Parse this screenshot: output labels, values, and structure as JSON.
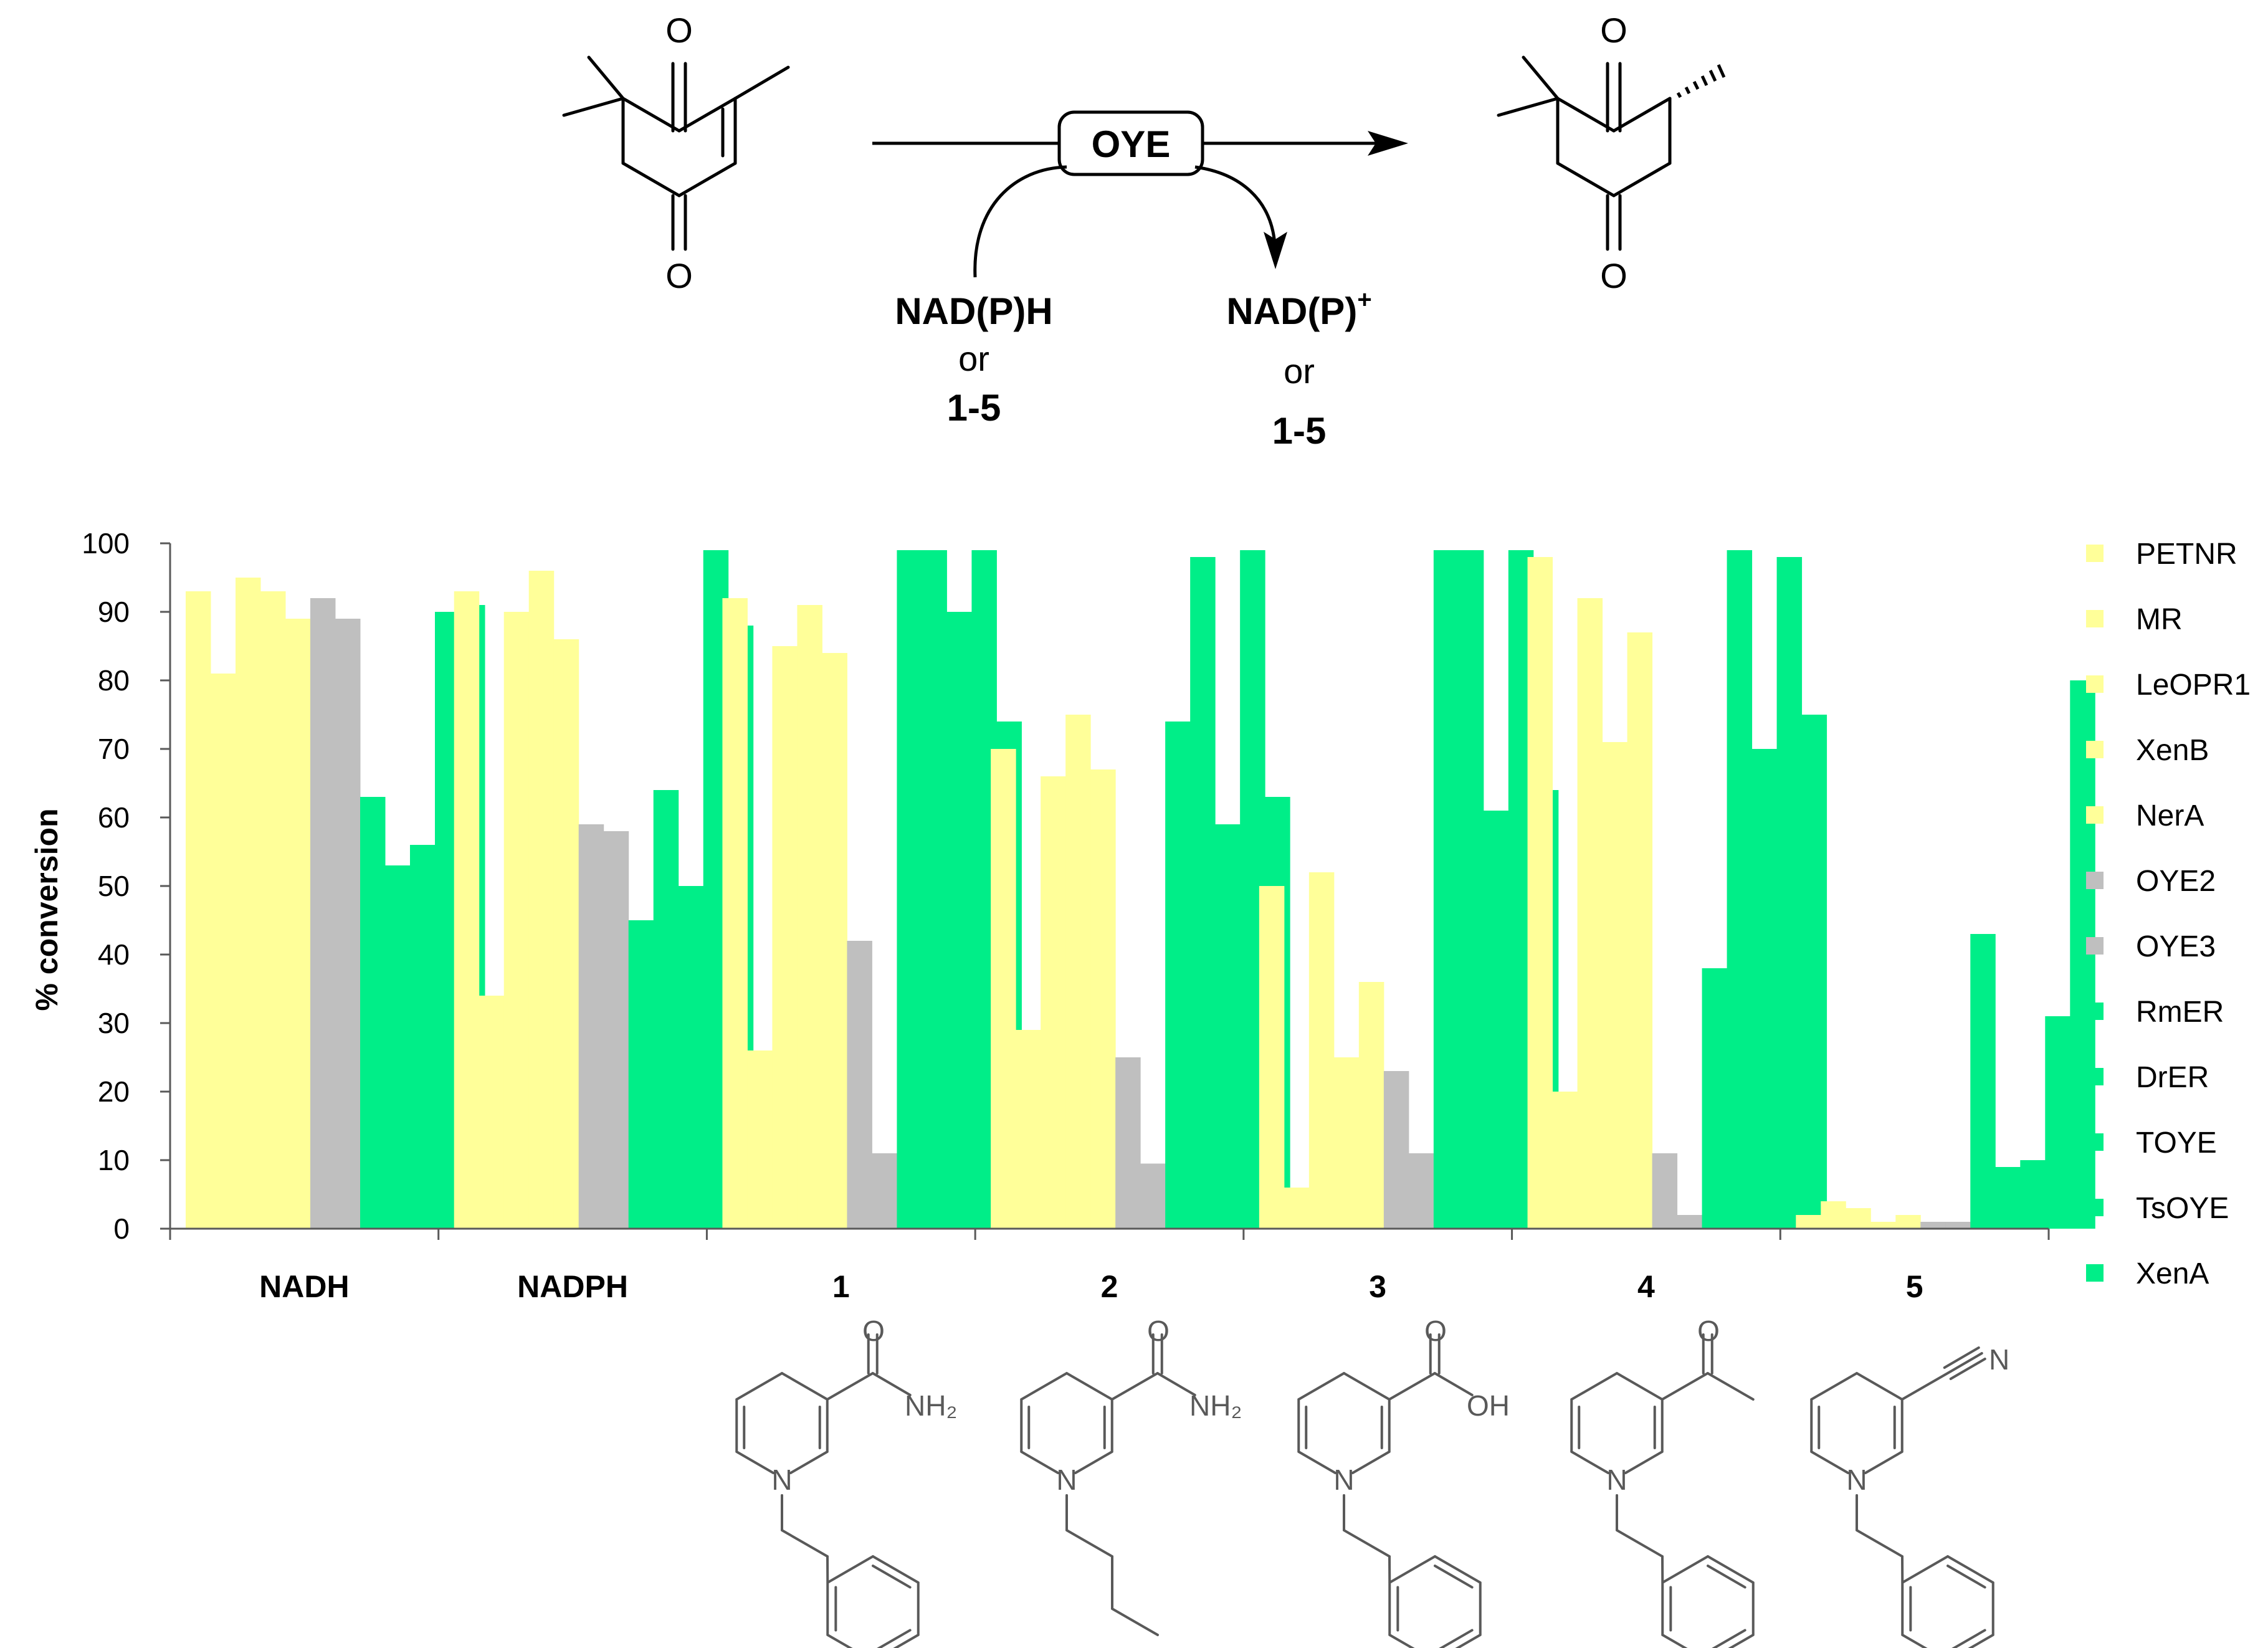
{
  "scheme": {
    "enzyme_label": "OYE",
    "cofactor_in": {
      "line1": "NAD(P)H",
      "line2": "or",
      "line3": "1-5"
    },
    "cofactor_out": {
      "line1": "NAD(P)",
      "superscript": "+",
      "line2": "or",
      "line3": "1-5"
    },
    "substrate_atoms": [
      "O",
      "O"
    ],
    "product_atoms": [
      "O",
      "O"
    ]
  },
  "structure_labels": {
    "s1": {
      "o": "O",
      "nh2": "NH₂",
      "n": "N"
    },
    "s2": {
      "o": "O",
      "nh2": "NH₂",
      "n": "N"
    },
    "s3": {
      "o": "O",
      "oh": "OH",
      "n": "N"
    },
    "s4": {
      "o": "O",
      "n": "N"
    },
    "s5": {
      "nitrile_n": "N",
      "n": "N"
    }
  },
  "chart_data": {
    "type": "bar",
    "title": "",
    "xlabel": "",
    "ylabel": "% conversion",
    "ylim": [
      0,
      100
    ],
    "yticks": [
      0,
      10,
      20,
      30,
      40,
      50,
      60,
      70,
      80,
      90,
      100
    ],
    "grid": false,
    "legend_position": "right",
    "categories": [
      "NADH",
      "NADPH",
      "1",
      "2",
      "3",
      "4",
      "5"
    ],
    "series": [
      {
        "name": "PETNR",
        "color": "#ffff99",
        "values": [
          93,
          93,
          92,
          70,
          50,
          98,
          2
        ]
      },
      {
        "name": "MR",
        "color": "#ffff99",
        "values": [
          81,
          34,
          26,
          29,
          6,
          20,
          4
        ]
      },
      {
        "name": "LeOPR1",
        "color": "#ffff99",
        "values": [
          95,
          90,
          85,
          66,
          52,
          92,
          3
        ]
      },
      {
        "name": "XenB",
        "color": "#ffff99",
        "values": [
          93,
          96,
          91,
          75,
          25,
          71,
          1
        ]
      },
      {
        "name": "NerA",
        "color": "#ffff99",
        "values": [
          89,
          86,
          84,
          67,
          36,
          87,
          2
        ]
      },
      {
        "name": "OYE2",
        "color": "#bfbfbf",
        "values": [
          92,
          59,
          42,
          25,
          23,
          11,
          1
        ]
      },
      {
        "name": "OYE3",
        "color": "#bfbfbf",
        "values": [
          89,
          58,
          11,
          9.5,
          11,
          2,
          1
        ]
      },
      {
        "name": "RmER",
        "color": "#00ee88",
        "values": [
          63,
          45,
          99,
          74,
          99,
          38,
          43
        ]
      },
      {
        "name": "DrER",
        "color": "#00ee88",
        "values": [
          53,
          64,
          99,
          98,
          99,
          99,
          9
        ]
      },
      {
        "name": "TOYE",
        "color": "#00ee88",
        "values": [
          56,
          50,
          90,
          59,
          61,
          70,
          10
        ]
      },
      {
        "name": "TsOYE",
        "color": "#00ee88",
        "values": [
          90,
          99,
          99,
          99,
          99,
          98,
          31
        ]
      },
      {
        "name": "XenA",
        "color": "#00ee88",
        "values": [
          91,
          88,
          74,
          63,
          64,
          75,
          80
        ]
      }
    ]
  }
}
